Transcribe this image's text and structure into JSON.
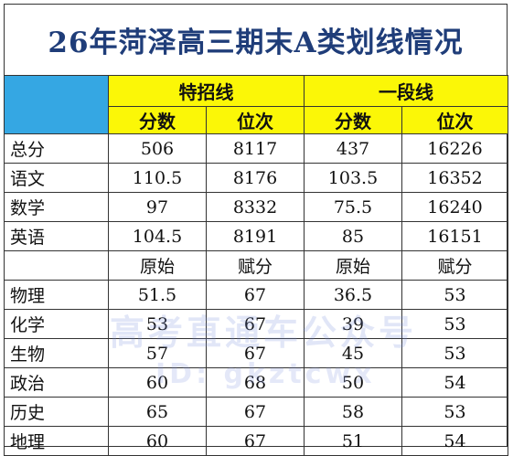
{
  "title": "26年菏泽高三期末A类划线情况",
  "groups": [
    "特招线",
    "一段线"
  ],
  "subheaders": [
    "分数",
    "位次",
    "分数",
    "位次"
  ],
  "main_rows": [
    {
      "subject": "总分",
      "v": [
        "506",
        "8117",
        "437",
        "16226"
      ]
    },
    {
      "subject": "语文",
      "v": [
        "110.5",
        "8176",
        "103.5",
        "16352"
      ]
    },
    {
      "subject": "数学",
      "v": [
        "97",
        "8332",
        "75.5",
        "16240"
      ]
    },
    {
      "subject": "英语",
      "v": [
        "104.5",
        "8191",
        "85",
        "16151"
      ]
    }
  ],
  "elective_header": [
    "原始",
    "赋分",
    "原始",
    "赋分"
  ],
  "elective_rows": [
    {
      "subject": "物理",
      "v": [
        "51.5",
        "67",
        "36.5",
        "53"
      ]
    },
    {
      "subject": "化学",
      "v": [
        "53",
        "67",
        "39",
        "53"
      ]
    },
    {
      "subject": "生物",
      "v": [
        "57",
        "67",
        "45",
        "53"
      ]
    },
    {
      "subject": "政治",
      "v": [
        "60",
        "68",
        "50",
        "54"
      ]
    },
    {
      "subject": "历史",
      "v": [
        "65",
        "67",
        "58",
        "53"
      ]
    },
    {
      "subject": "地理",
      "v": [
        "60",
        "67",
        "51",
        "54"
      ]
    }
  ],
  "watermark": {
    "line1": "高考直通车公众号",
    "line2": "ID: gkztcwx"
  }
}
